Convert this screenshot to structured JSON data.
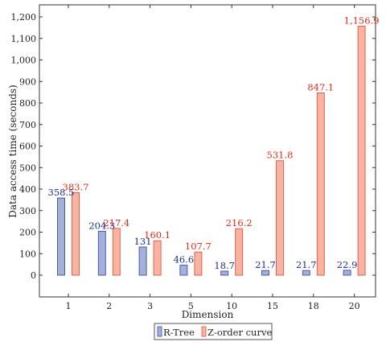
{
  "chart_data": {
    "type": "bar",
    "title": "",
    "xlabel": "Dimension",
    "ylabel": "Data access time (seconds)",
    "categories": [
      "1",
      "2",
      "3",
      "5",
      "10",
      "15",
      "18",
      "20"
    ],
    "ylim": [
      -100,
      1250
    ],
    "yticks": [
      0,
      100,
      200,
      300,
      400,
      500,
      600,
      700,
      800,
      900,
      1000,
      1100,
      1200
    ],
    "ytick_labels": [
      "0",
      "100",
      "200",
      "300",
      "400",
      "500",
      "600",
      "700",
      "800",
      "900",
      "1,000",
      "1,100",
      "1,200"
    ],
    "grid": false,
    "legend_position": "bottom-center",
    "series": [
      {
        "name": "R-Tree",
        "values": [
          358.5,
          204.3,
          131,
          46.6,
          18.7,
          21.7,
          21.7,
          22.9
        ],
        "labels": [
          "358.5",
          "204.3",
          "131",
          "46.6",
          "18.7",
          "21.7",
          "21.7",
          "22.9"
        ],
        "fill": "#a5b0da",
        "stroke": "#3d4fa3",
        "label_color": "#1f2f8a"
      },
      {
        "name": "Z-order curve",
        "values": [
          383.7,
          217.4,
          160.1,
          107.7,
          216.2,
          531.8,
          847.1,
          1156.9
        ],
        "labels": [
          "383.7",
          "217.4",
          "160.1",
          "107.7",
          "216.2",
          "531.8",
          "847.1",
          "1,156.9"
        ],
        "fill": "#f9b3a3",
        "stroke": "#e0553d",
        "label_color": "#e02a1a"
      }
    ]
  }
}
